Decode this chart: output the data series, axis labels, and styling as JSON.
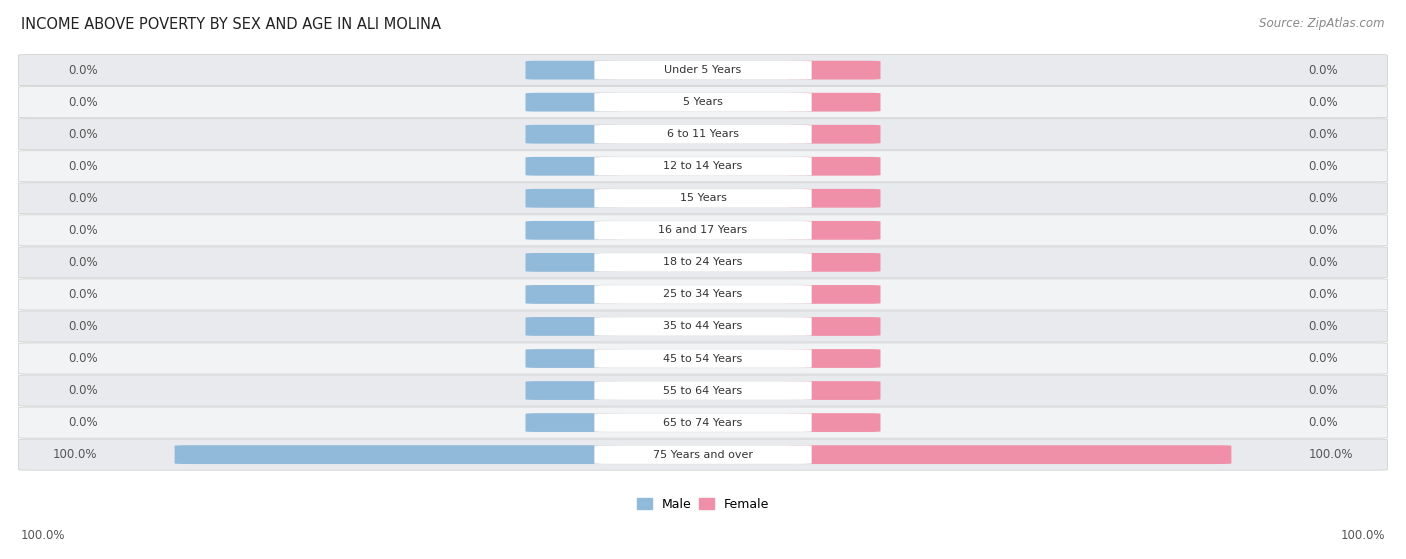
{
  "title": "INCOME ABOVE POVERTY BY SEX AND AGE IN ALI MOLINA",
  "source": "Source: ZipAtlas.com",
  "categories": [
    "Under 5 Years",
    "5 Years",
    "6 to 11 Years",
    "12 to 14 Years",
    "15 Years",
    "16 and 17 Years",
    "18 to 24 Years",
    "25 to 34 Years",
    "35 to 44 Years",
    "45 to 54 Years",
    "55 to 64 Years",
    "65 to 74 Years",
    "75 Years and over"
  ],
  "male_values": [
    0.0,
    0.0,
    0.0,
    0.0,
    0.0,
    0.0,
    0.0,
    0.0,
    0.0,
    0.0,
    0.0,
    0.0,
    100.0
  ],
  "female_values": [
    0.0,
    0.0,
    0.0,
    0.0,
    0.0,
    0.0,
    0.0,
    0.0,
    0.0,
    0.0,
    0.0,
    0.0,
    100.0
  ],
  "male_color": "#91b9d9",
  "female_color": "#f090a8",
  "row_bg_color": "#e8eaed",
  "row_alt_color": "#f2f3f5",
  "label_bg_color": "#ffffff",
  "title_fontsize": 10.5,
  "source_fontsize": 8.5,
  "label_fontsize": 8.0,
  "value_fontsize": 8.5,
  "legend_fontsize": 9,
  "figure_bg": "#ffffff",
  "axis_label_color": "#555555",
  "label_text_color": "#333333"
}
